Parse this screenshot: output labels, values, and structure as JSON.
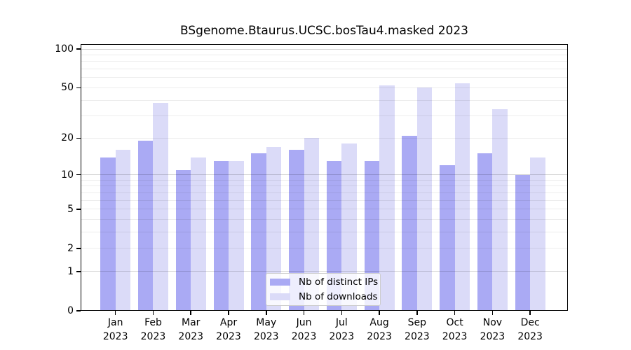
{
  "chart_data": {
    "type": "bar",
    "title": "BSgenome.Btaurus.UCSC.bosTau4.masked 2023",
    "categories": [
      "Jan",
      "Feb",
      "Mar",
      "Apr",
      "May",
      "Jun",
      "Jul",
      "Aug",
      "Sep",
      "Oct",
      "Nov",
      "Dec"
    ],
    "category_year": "2023",
    "series": [
      {
        "name": "Nb of distinct IPs",
        "color": "#aaaaf4",
        "values": [
          14,
          19,
          11,
          13,
          15,
          16,
          13,
          13,
          21,
          12,
          15,
          10
        ]
      },
      {
        "name": "Nb of downloads",
        "color": "#dbdbf8",
        "values": [
          16,
          38,
          14,
          13,
          17,
          20,
          18,
          52,
          50,
          54,
          34,
          14
        ]
      }
    ],
    "xlabel": "",
    "ylabel": "",
    "y_axis": {
      "scale": "log1p",
      "tick_labels": [
        "100",
        "50",
        "20",
        "10",
        "5",
        "2",
        "1",
        "0"
      ],
      "ylim": [
        0,
        110
      ],
      "grid": true
    },
    "legend": {
      "position": "lower-center"
    },
    "colors": {
      "background": "#ffffff",
      "axis": "#000000",
      "grid_minor": "#ececec",
      "grid_major": "#d6d6d6"
    }
  }
}
